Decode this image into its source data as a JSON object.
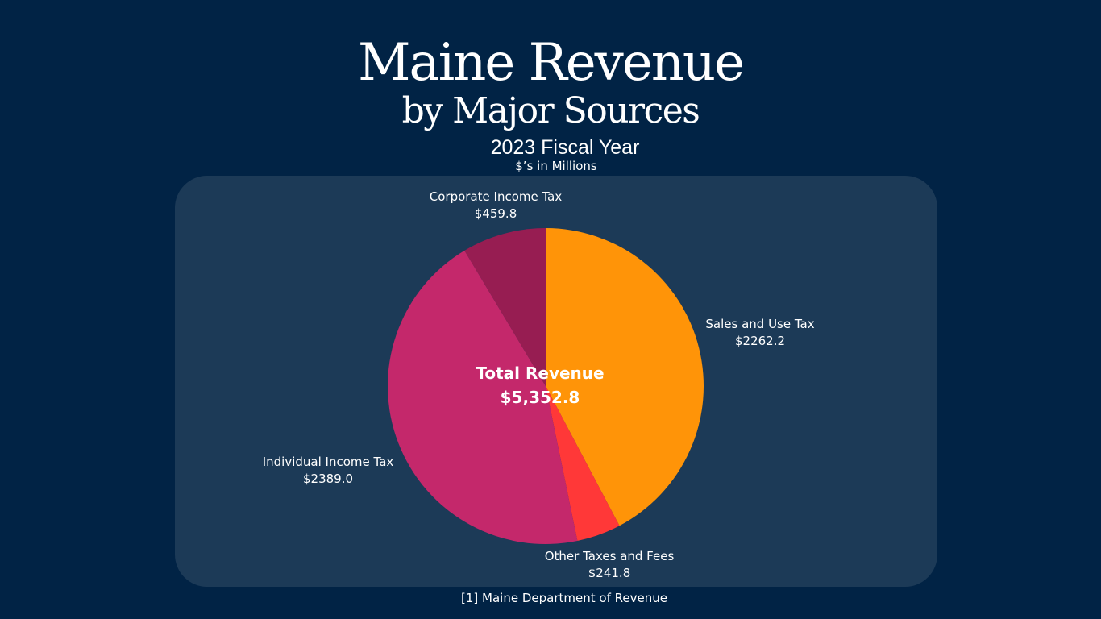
{
  "chart_data": {
    "type": "pie",
    "title": "Maine Revenue",
    "title_line2": "by Major Sources",
    "subtitle": "2023 Fiscal Year",
    "units": "$’s in Millions",
    "center": {
      "label": "Total Revenue",
      "value": "$5,352.8"
    },
    "slices": [
      {
        "name": "Sales and Use Tax",
        "value": 2262.2,
        "value_label": "$2262.2",
        "color": "#ff9408"
      },
      {
        "name": "Other Taxes and Fees",
        "value": 241.8,
        "value_label": "$241.8",
        "color": "#ff3838"
      },
      {
        "name": "Individual Income Tax",
        "value": 2389.0,
        "value_label": "$2389.0",
        "color": "#c4286b"
      },
      {
        "name": "Corporate Income Tax",
        "value": 459.8,
        "value_label": "$459.8",
        "color": "#971d52"
      }
    ],
    "start": "top",
    "direction": "clockwise"
  },
  "footer": {
    "source": "[1] Maine Department of Revenue"
  },
  "colors": {
    "background": "#012345",
    "panel": "#1c3a57"
  }
}
